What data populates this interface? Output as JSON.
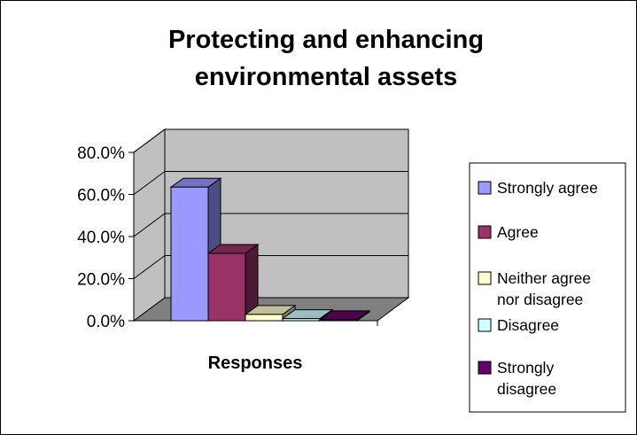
{
  "chart_data": {
    "type": "bar",
    "title_lines": [
      "Protecting and enhancing",
      "environmental assets"
    ],
    "xlabel": "Responses",
    "ylabel": "",
    "ylim": [
      0,
      80
    ],
    "y_ticks": [
      "0.0%",
      "20.0%",
      "40.0%",
      "60.0%",
      "80.0%"
    ],
    "y_tick_values": [
      0,
      20,
      40,
      60,
      80
    ],
    "grid": true,
    "legend_position": "right",
    "series": [
      {
        "name": "Strongly agree",
        "legend_lines": [
          "Strongly agree"
        ],
        "value": 63.5,
        "color": "#9999ff"
      },
      {
        "name": "Agree",
        "legend_lines": [
          "Agree"
        ],
        "value": 32.0,
        "color": "#993366"
      },
      {
        "name": "Neither agree nor disagree",
        "legend_lines": [
          "Neither agree",
          "nor disagree"
        ],
        "value": 3.0,
        "color": "#ffffcc"
      },
      {
        "name": "Disagree",
        "legend_lines": [
          "Disagree"
        ],
        "value": 1.0,
        "color": "#ccffff"
      },
      {
        "name": "Strongly disagree",
        "legend_lines": [
          "Strongly",
          "disagree"
        ],
        "value": 0.5,
        "color": "#660066"
      }
    ]
  }
}
